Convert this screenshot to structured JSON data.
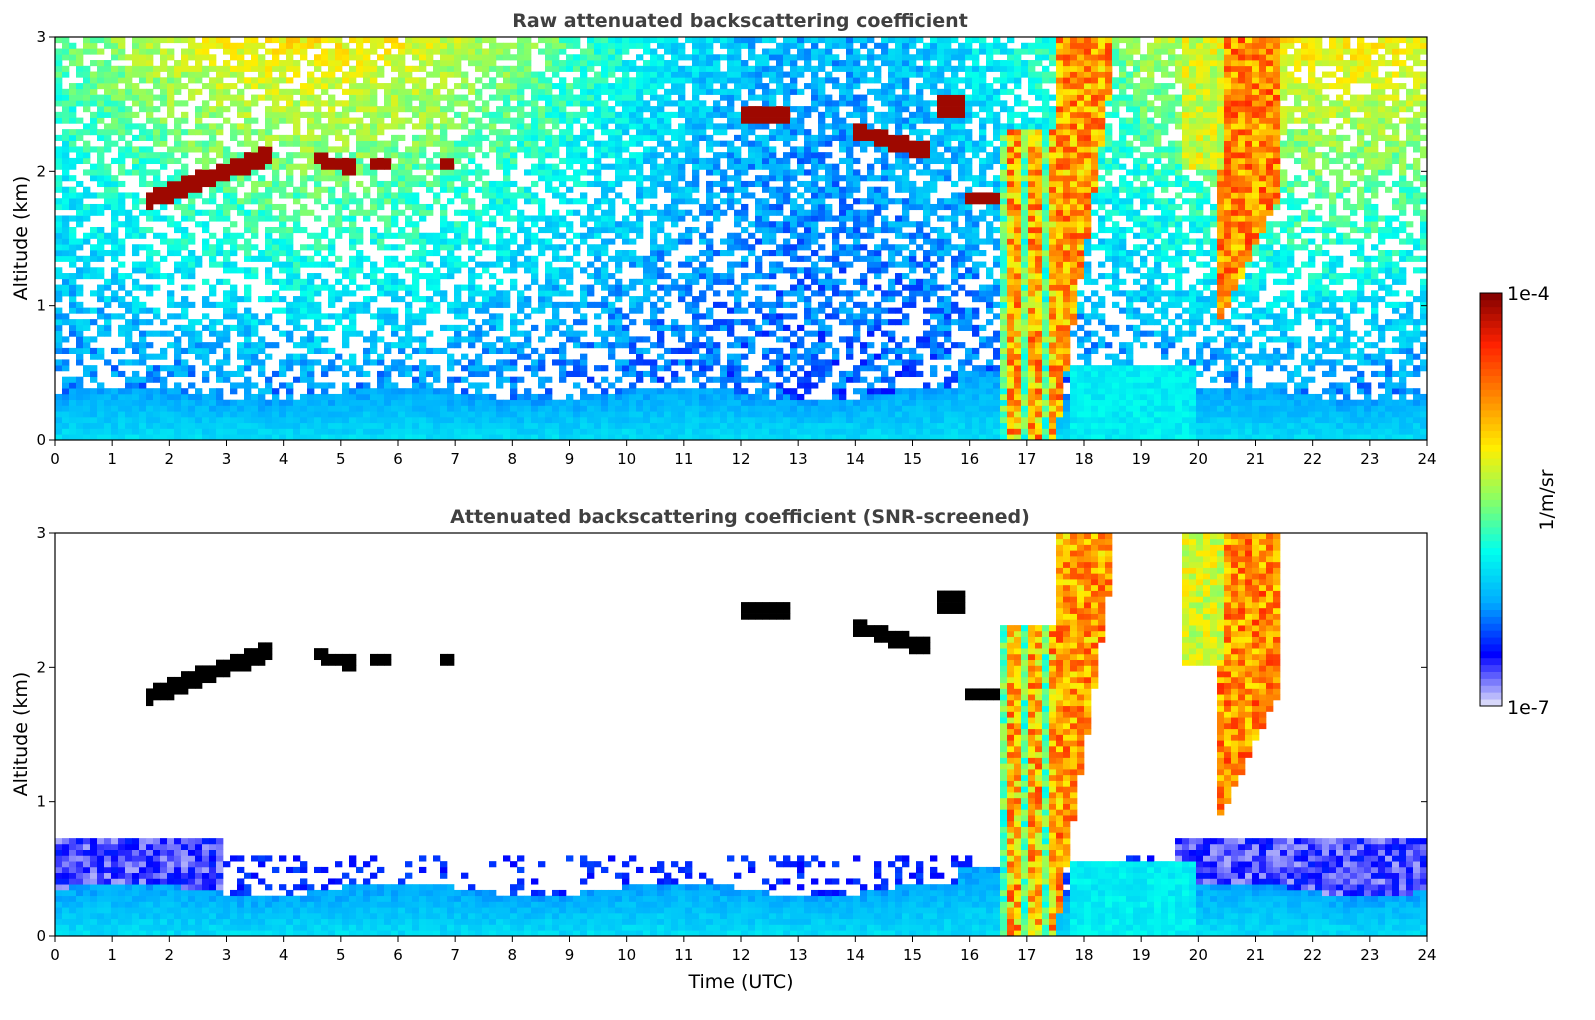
{
  "chart_data": [
    {
      "type": "heatmap",
      "title": "Raw attenuated backscattering coefficient",
      "xlabel": "",
      "ylabel": "Altitude (km)",
      "xlim": [
        0,
        24
      ],
      "ylim": [
        0,
        3
      ],
      "x_ticks": [
        "0",
        "1",
        "2",
        "3",
        "4",
        "5",
        "6",
        "7",
        "8",
        "9",
        "10",
        "11",
        "12",
        "13",
        "14",
        "15",
        "16",
        "17",
        "18",
        "19",
        "20",
        "21",
        "22",
        "23",
        "24"
      ],
      "y_ticks": [
        "0",
        "1",
        "2",
        "3"
      ],
      "screened": false
    },
    {
      "type": "heatmap",
      "title": "Attenuated backscattering coefficient (SNR-screened)",
      "xlabel": "Time (UTC)",
      "ylabel": "Altitude (km)",
      "xlim": [
        0,
        24
      ],
      "ylim": [
        0,
        3
      ],
      "x_ticks": [
        "0",
        "1",
        "2",
        "3",
        "4",
        "5",
        "6",
        "7",
        "8",
        "9",
        "10",
        "11",
        "12",
        "13",
        "14",
        "15",
        "16",
        "17",
        "18",
        "19",
        "20",
        "21",
        "22",
        "23",
        "24"
      ],
      "y_ticks": [
        "0",
        "1",
        "2",
        "3"
      ],
      "screened": true
    }
  ],
  "colorbar": {
    "max_label": "1e-4",
    "min_label": "1e-7",
    "unit_label": "1/m/sr",
    "scale": "log",
    "colors": [
      "#e6e6fa",
      "#0000ff",
      "#00aaff",
      "#00ffee",
      "#88ff66",
      "#ffee00",
      "#ff8800",
      "#ff2200",
      "#800000"
    ]
  }
}
